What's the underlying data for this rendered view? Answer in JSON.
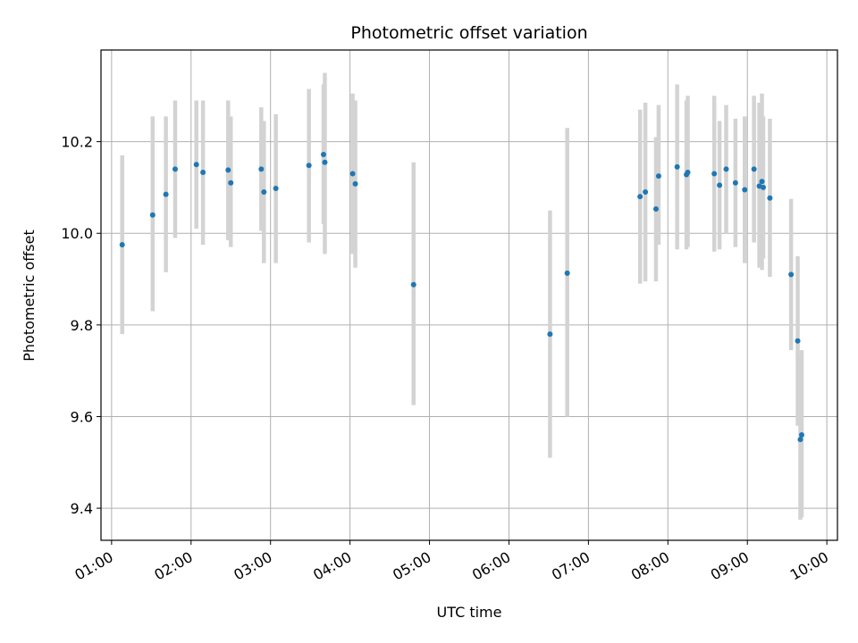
{
  "chart_data": {
    "type": "scatter",
    "title": "Photometric offset variation",
    "xlabel": "UTC time",
    "ylabel": "Photometric offset",
    "xlim": [
      "00:52",
      "10:08"
    ],
    "ylim": [
      9.33,
      10.4
    ],
    "x_ticks": [
      "01:00",
      "02:00",
      "03:00",
      "04:00",
      "05:00",
      "06:00",
      "07:00",
      "08:00",
      "09:00",
      "10:00"
    ],
    "y_ticks": [
      9.4,
      9.6,
      9.8,
      10.0,
      10.2
    ],
    "y_tick_labels": [
      "9.4",
      "9.6",
      "9.8",
      "10.0",
      "10.2"
    ],
    "grid": true,
    "point_color": "#1f77b4",
    "errorbar_color": "#d3d3d3",
    "points": [
      {
        "t": "01:08",
        "y": 9.975,
        "lo": 9.78,
        "hi": 10.17
      },
      {
        "t": "01:31",
        "y": 10.04,
        "lo": 9.83,
        "hi": 10.255
      },
      {
        "t": "01:41",
        "y": 10.085,
        "lo": 9.915,
        "hi": 10.255
      },
      {
        "t": "01:48",
        "y": 10.14,
        "lo": 9.99,
        "hi": 10.29
      },
      {
        "t": "02:04",
        "y": 10.15,
        "lo": 10.01,
        "hi": 10.29
      },
      {
        "t": "02:09",
        "y": 10.133,
        "lo": 9.975,
        "hi": 10.29
      },
      {
        "t": "02:28",
        "y": 10.138,
        "lo": 9.985,
        "hi": 10.29
      },
      {
        "t": "02:30",
        "y": 10.11,
        "lo": 9.97,
        "hi": 10.255
      },
      {
        "t": "02:53",
        "y": 10.14,
        "lo": 10.005,
        "hi": 10.275
      },
      {
        "t": "02:55",
        "y": 10.09,
        "lo": 9.935,
        "hi": 10.245
      },
      {
        "t": "03:04",
        "y": 10.098,
        "lo": 9.935,
        "hi": 10.26
      },
      {
        "t": "03:29",
        "y": 10.148,
        "lo": 9.98,
        "hi": 10.315
      },
      {
        "t": "03:40",
        "y": 10.172,
        "lo": 10.02,
        "hi": 10.325
      },
      {
        "t": "03:41",
        "y": 10.155,
        "lo": 9.955,
        "hi": 10.35
      },
      {
        "t": "04:02",
        "y": 10.13,
        "lo": 9.955,
        "hi": 10.305
      },
      {
        "t": "04:04",
        "y": 10.108,
        "lo": 9.925,
        "hi": 10.29
      },
      {
        "t": "04:48",
        "y": 9.888,
        "lo": 9.625,
        "hi": 10.155
      },
      {
        "t": "06:31",
        "y": 9.78,
        "lo": 9.51,
        "hi": 10.05
      },
      {
        "t": "06:44",
        "y": 9.913,
        "lo": 9.6,
        "hi": 10.23
      },
      {
        "t": "07:39",
        "y": 10.08,
        "lo": 9.89,
        "hi": 10.27
      },
      {
        "t": "07:43",
        "y": 10.09,
        "lo": 9.895,
        "hi": 10.285
      },
      {
        "t": "07:51",
        "y": 10.053,
        "lo": 9.895,
        "hi": 10.21
      },
      {
        "t": "07:53",
        "y": 10.125,
        "lo": 9.975,
        "hi": 10.28
      },
      {
        "t": "08:07",
        "y": 10.145,
        "lo": 9.965,
        "hi": 10.325
      },
      {
        "t": "08:14",
        "y": 10.128,
        "lo": 9.965,
        "hi": 10.29
      },
      {
        "t": "08:15",
        "y": 10.133,
        "lo": 9.97,
        "hi": 10.3
      },
      {
        "t": "08:35",
        "y": 10.13,
        "lo": 9.96,
        "hi": 10.3
      },
      {
        "t": "08:39",
        "y": 10.105,
        "lo": 9.965,
        "hi": 10.245
      },
      {
        "t": "08:44",
        "y": 10.14,
        "lo": 10.0,
        "hi": 10.28
      },
      {
        "t": "08:51",
        "y": 10.11,
        "lo": 9.97,
        "hi": 10.25
      },
      {
        "t": "08:58",
        "y": 10.095,
        "lo": 9.935,
        "hi": 10.255
      },
      {
        "t": "09:05",
        "y": 10.14,
        "lo": 9.98,
        "hi": 10.3
      },
      {
        "t": "09:09",
        "y": 10.103,
        "lo": 9.925,
        "hi": 10.285
      },
      {
        "t": "09:11",
        "y": 10.113,
        "lo": 9.92,
        "hi": 10.305
      },
      {
        "t": "09:12",
        "y": 10.1,
        "lo": 9.945,
        "hi": 10.255
      },
      {
        "t": "09:17",
        "y": 10.077,
        "lo": 9.905,
        "hi": 10.25
      },
      {
        "t": "09:33",
        "y": 9.91,
        "lo": 9.745,
        "hi": 10.075
      },
      {
        "t": "09:38",
        "y": 9.765,
        "lo": 9.58,
        "hi": 9.95
      },
      {
        "t": "09:40",
        "y": 9.55,
        "lo": 9.375,
        "hi": 9.73
      },
      {
        "t": "09:41",
        "y": 9.56,
        "lo": 9.38,
        "hi": 9.745
      }
    ]
  }
}
